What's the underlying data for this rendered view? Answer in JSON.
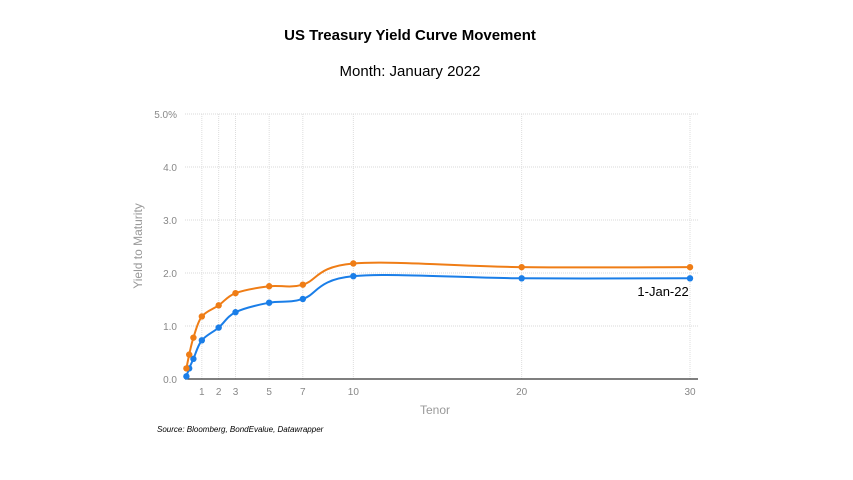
{
  "header": {
    "title": "US Treasury Yield Curve Movement",
    "subtitle": "Month: January 2022"
  },
  "footer": {
    "source": "Source: Bloomberg, BondEvalue, Datawrapper"
  },
  "chart_data": {
    "type": "line",
    "xlabel": "Tenor",
    "ylabel": "Yield to Maturity",
    "xlim": [
      0,
      30
    ],
    "ylim": [
      0,
      5
    ],
    "x_ticks": [
      1,
      2,
      3,
      5,
      7,
      10,
      20,
      30
    ],
    "y_ticks": [
      "0.0",
      "1.0",
      "2.0",
      "3.0",
      "4.0",
      "5.0%"
    ],
    "grid": true,
    "annotations": [
      {
        "text": "1-Jan-22",
        "near_series": "blue",
        "x": 28.4,
        "y": 1.57
      }
    ],
    "series": [
      {
        "color": "#1a7ee8",
        "x": [
          0.083,
          0.25,
          0.5,
          1,
          2,
          3,
          5,
          7,
          10,
          20,
          30
        ],
        "values": [
          0.05,
          0.2,
          0.38,
          0.73,
          0.97,
          1.26,
          1.44,
          1.51,
          1.94,
          1.9,
          1.9
        ]
      },
      {
        "color": "#ef7d16",
        "x": [
          0.083,
          0.25,
          0.5,
          1,
          2,
          3,
          5,
          7,
          10,
          20,
          30
        ],
        "values": [
          0.2,
          0.46,
          0.78,
          1.18,
          1.39,
          1.62,
          1.75,
          1.78,
          2.18,
          2.11,
          2.11
        ]
      }
    ]
  }
}
